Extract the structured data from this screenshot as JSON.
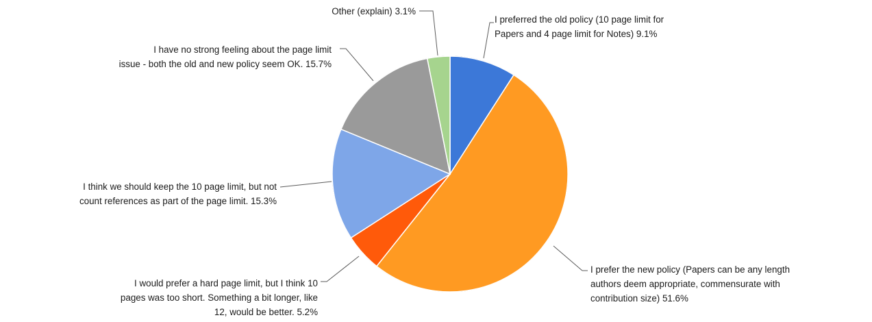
{
  "chart_data": {
    "type": "pie",
    "title": "",
    "legend": "none",
    "slices": [
      {
        "key": "old",
        "lines": [
          "I preferred the old policy (10 page limit for",
          "Papers and 4 page limit for Notes) 9.1%"
        ],
        "value": 9.1,
        "color": "#3c78d8"
      },
      {
        "key": "new",
        "lines": [
          "I prefer the new policy (Papers can be any length",
          "authors deem appropriate, commensurate with",
          "contribution size) 51.6%"
        ],
        "value": 51.6,
        "color": "#ff9a22"
      },
      {
        "key": "hard",
        "lines": [
          "I would prefer a hard page limit, but I think 10",
          "pages was too short. Something a bit longer, like",
          "12, would be better. 5.2%"
        ],
        "value": 5.2,
        "color": "#ff5a0a"
      },
      {
        "key": "refs",
        "lines": [
          "I think we should keep the 10 page limit, but not",
          "count references as part of the page limit. 15.3%"
        ],
        "value": 15.3,
        "color": "#7ea6e8"
      },
      {
        "key": "nofeel",
        "lines": [
          "I have no strong feeling about the page limit",
          "issue - both the old and new policy seem OK. 15.7%"
        ],
        "value": 15.7,
        "color": "#9a9a9a"
      },
      {
        "key": "other",
        "lines": [
          "Other (explain) 3.1%"
        ],
        "value": 3.1,
        "color": "#a6d48e"
      }
    ]
  }
}
